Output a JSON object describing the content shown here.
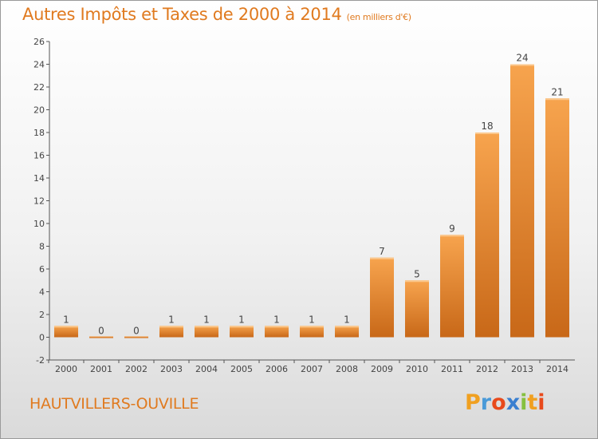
{
  "header": {
    "title": "Autres Impôts et Taxes de 2000 à 2014",
    "subtitle": "(en milliers d'€)"
  },
  "footer": {
    "commune": "HAUTVILLERS-OUVILLE",
    "logo_letters": [
      "P",
      "r",
      "o",
      "x",
      "i",
      "t",
      "i"
    ],
    "logo_colors": [
      "#f0a020",
      "#4a9ad8",
      "#e84a1c",
      "#3a7fd0",
      "#86c040",
      "#f0a020",
      "#e84a1c"
    ]
  },
  "colors": {
    "bar_light": "#f7a44e",
    "bar_dark": "#c86818",
    "bar_top": "#fbc78c",
    "axis": "#555555",
    "grid": "#cccccc",
    "text": "#444444",
    "accent": "#e07a1f"
  },
  "chart_data": {
    "type": "bar",
    "title": "Autres Impôts et Taxes de 2000 à 2014",
    "subtitle": "(en milliers d'€)",
    "categories": [
      "2000",
      "2001",
      "2002",
      "2003",
      "2004",
      "2005",
      "2006",
      "2007",
      "2008",
      "2009",
      "2010",
      "2011",
      "2012",
      "2013",
      "2014"
    ],
    "values": [
      1,
      0,
      0,
      1,
      1,
      1,
      1,
      1,
      1,
      7,
      5,
      9,
      18,
      24,
      21
    ],
    "ylim": [
      -2,
      26
    ],
    "yticks": [
      -2,
      0,
      2,
      4,
      6,
      8,
      10,
      12,
      14,
      16,
      18,
      20,
      22,
      24,
      26
    ],
    "grid": false,
    "legend": "none"
  }
}
